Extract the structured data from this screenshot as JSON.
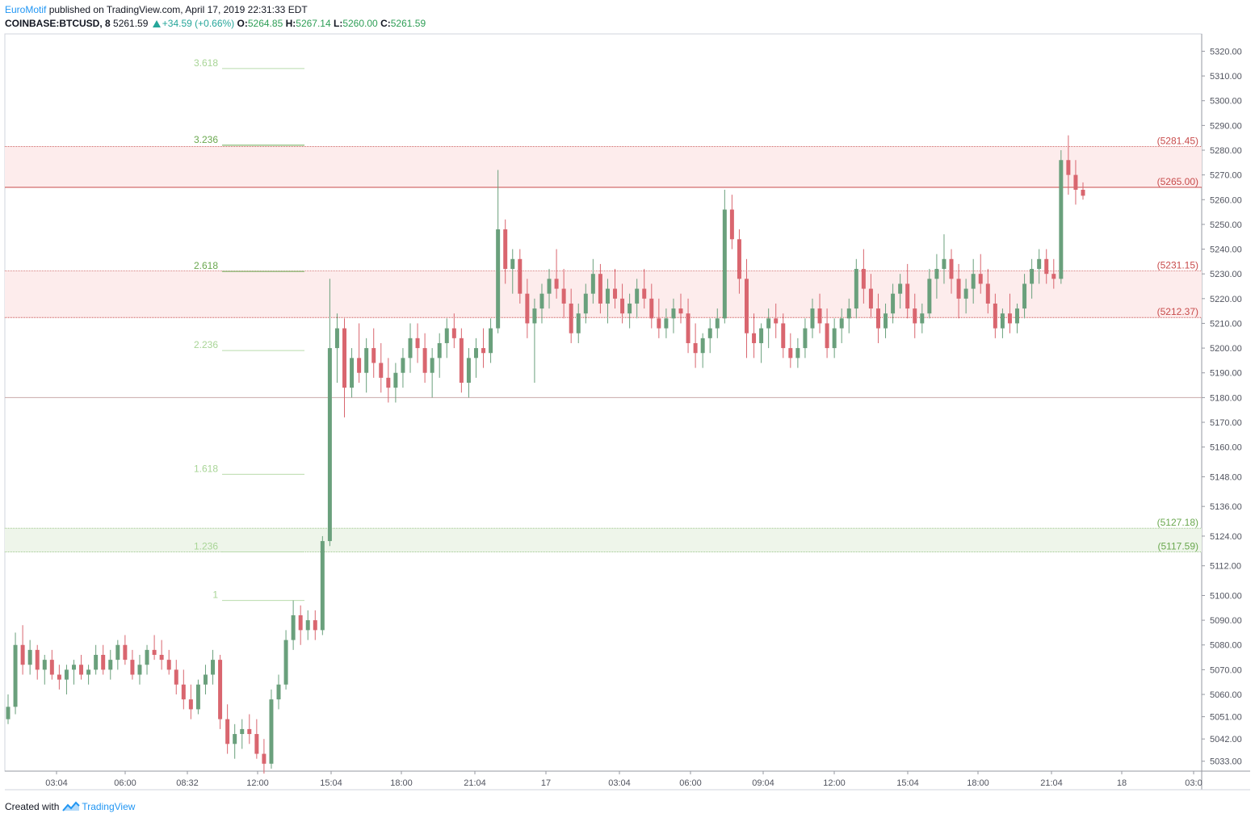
{
  "header": {
    "author": "EuroMotif",
    "published_text": "published on TradingView.com, April 17, 2019 22:31:33 EDT",
    "symbol": "COINBASE:BTCUSD, 8",
    "last": "5261.59",
    "change": "+34.59 (+0.66%)",
    "o_label": "O:",
    "o_value": "5264.85",
    "h_label": "H:",
    "h_value": "5267.14",
    "l_label": "L:",
    "l_value": "5260.00",
    "c_label": "C:",
    "c_value": "5261.59"
  },
  "footer": {
    "created_with": "Created with",
    "brand": "TradingView",
    "logo_icon": "tradingview-logo-icon"
  },
  "colors": {
    "up_candle": "#6aa07c",
    "down_candle": "#d9666f",
    "resistance_zone": "#fdecec",
    "resistance_line": "#c84b4b",
    "support_zone": "#eef5ea",
    "support_line": "#8fbf7a",
    "fib_text": "#8fc47a",
    "axis_text": "#50535e",
    "grid_line": "#9598a1"
  },
  "chart_data": {
    "type": "candlestick",
    "y_axis": {
      "ticks": [
        "5033.00",
        "5042.00",
        "5051.00",
        "5060.00",
        "5070.00",
        "5080.00",
        "5090.00",
        "5100.00",
        "5112.00",
        "5124.00",
        "5136.00",
        "5148.00",
        "5160.00",
        "5170.00",
        "5180.00",
        "5190.00",
        "5200.00",
        "5210.00",
        "5220.00",
        "5230.00",
        "5240.00",
        "5250.00",
        "5260.00",
        "5270.00",
        "5280.00",
        "5290.00",
        "5300.00",
        "5310.00",
        "5320.00"
      ]
    },
    "x_axis": {
      "ticks": [
        "03:04",
        "06:00",
        "08:32",
        "12:00",
        "15:04",
        "18:00",
        "21:04",
        "17",
        "03:04",
        "06:00",
        "09:04",
        "12:00",
        "15:04",
        "18:00",
        "21:04",
        "18",
        "03:0"
      ]
    },
    "fib_levels": [
      {
        "label": "3.618",
        "price": 5313
      },
      {
        "label": "3.236",
        "price": 5282
      },
      {
        "label": "2.618",
        "price": 5231
      },
      {
        "label": "2.236",
        "price": 5199
      },
      {
        "label": "1.618",
        "price": 5149
      },
      {
        "label": "1.236",
        "price": 5117.6
      },
      {
        "label": "1",
        "price": 5098
      }
    ],
    "zones": [
      {
        "type": "resistance",
        "top_label": "(5281.45)",
        "top": 5281.45,
        "bottom_label": "(5265.00)",
        "bottom": 5265.0
      },
      {
        "type": "resistance",
        "top_label": "(5231.15)",
        "top": 5231.15,
        "bottom_label": "(5212.37)",
        "bottom": 5212.37
      },
      {
        "type": "support",
        "top_label": "(5127.18)",
        "top": 5127.18,
        "bottom_label": "(5117.59)",
        "bottom": 5117.59
      }
    ],
    "horizontal_line": 5180,
    "candles": [
      [
        5050,
        5060,
        5048,
        5055
      ],
      [
        5055,
        5085,
        5052,
        5080
      ],
      [
        5080,
        5088,
        5068,
        5072
      ],
      [
        5072,
        5082,
        5068,
        5078
      ],
      [
        5078,
        5080,
        5066,
        5070
      ],
      [
        5070,
        5076,
        5064,
        5074
      ],
      [
        5074,
        5078,
        5066,
        5068
      ],
      [
        5068,
        5072,
        5062,
        5066
      ],
      [
        5066,
        5072,
        5060,
        5070
      ],
      [
        5070,
        5074,
        5064,
        5072
      ],
      [
        5072,
        5076,
        5066,
        5068
      ],
      [
        5068,
        5072,
        5064,
        5070
      ],
      [
        5070,
        5080,
        5068,
        5076
      ],
      [
        5076,
        5080,
        5068,
        5070
      ],
      [
        5070,
        5078,
        5066,
        5074
      ],
      [
        5074,
        5082,
        5070,
        5080
      ],
      [
        5080,
        5084,
        5072,
        5074
      ],
      [
        5074,
        5078,
        5066,
        5068
      ],
      [
        5068,
        5076,
        5064,
        5072
      ],
      [
        5072,
        5080,
        5068,
        5078
      ],
      [
        5078,
        5084,
        5074,
        5076
      ],
      [
        5076,
        5082,
        5070,
        5074
      ],
      [
        5074,
        5078,
        5068,
        5070
      ],
      [
        5070,
        5074,
        5060,
        5064
      ],
      [
        5064,
        5070,
        5054,
        5058
      ],
      [
        5058,
        5064,
        5050,
        5054
      ],
      [
        5054,
        5066,
        5052,
        5064
      ],
      [
        5064,
        5072,
        5060,
        5068
      ],
      [
        5068,
        5078,
        5064,
        5074
      ],
      [
        5074,
        5076,
        5046,
        5050
      ],
      [
        5050,
        5056,
        5036,
        5040
      ],
      [
        5040,
        5048,
        5034,
        5044
      ],
      [
        5044,
        5050,
        5038,
        5046
      ],
      [
        5046,
        5052,
        5040,
        5044
      ],
      [
        5044,
        5050,
        5034,
        5036
      ],
      [
        5036,
        5042,
        5028,
        5032
      ],
      [
        5032,
        5062,
        5030,
        5058
      ],
      [
        5058,
        5068,
        5054,
        5064
      ],
      [
        5064,
        5086,
        5062,
        5082
      ],
      [
        5082,
        5098,
        5078,
        5092
      ],
      [
        5092,
        5096,
        5080,
        5086
      ],
      [
        5086,
        5094,
        5082,
        5090
      ],
      [
        5090,
        5094,
        5082,
        5086
      ],
      [
        5086,
        5124,
        5084,
        5122
      ],
      [
        5122,
        5228,
        5120,
        5200
      ],
      [
        5200,
        5214,
        5186,
        5208
      ],
      [
        5208,
        5212,
        5172,
        5184
      ],
      [
        5184,
        5200,
        5180,
        5196
      ],
      [
        5196,
        5210,
        5186,
        5190
      ],
      [
        5190,
        5204,
        5182,
        5200
      ],
      [
        5200,
        5208,
        5188,
        5194
      ],
      [
        5194,
        5202,
        5182,
        5188
      ],
      [
        5188,
        5196,
        5178,
        5184
      ],
      [
        5184,
        5194,
        5178,
        5190
      ],
      [
        5190,
        5200,
        5184,
        5196
      ],
      [
        5196,
        5210,
        5190,
        5204
      ],
      [
        5204,
        5210,
        5194,
        5200
      ],
      [
        5200,
        5206,
        5186,
        5190
      ],
      [
        5190,
        5200,
        5180,
        5196
      ],
      [
        5196,
        5206,
        5188,
        5202
      ],
      [
        5202,
        5212,
        5196,
        5208
      ],
      [
        5208,
        5214,
        5200,
        5204
      ],
      [
        5204,
        5208,
        5182,
        5186
      ],
      [
        5186,
        5200,
        5180,
        5196
      ],
      [
        5196,
        5204,
        5188,
        5200
      ],
      [
        5200,
        5208,
        5192,
        5198
      ],
      [
        5198,
        5212,
        5194,
        5208
      ],
      [
        5208,
        5272,
        5206,
        5248
      ],
      [
        5248,
        5252,
        5226,
        5232
      ],
      [
        5232,
        5240,
        5222,
        5236
      ],
      [
        5236,
        5240,
        5218,
        5222
      ],
      [
        5222,
        5228,
        5204,
        5210
      ],
      [
        5210,
        5220,
        5186,
        5216
      ],
      [
        5216,
        5226,
        5210,
        5222
      ],
      [
        5222,
        5232,
        5216,
        5228
      ],
      [
        5228,
        5240,
        5220,
        5224
      ],
      [
        5224,
        5232,
        5212,
        5218
      ],
      [
        5218,
        5224,
        5202,
        5206
      ],
      [
        5206,
        5218,
        5202,
        5214
      ],
      [
        5214,
        5226,
        5210,
        5222
      ],
      [
        5222,
        5236,
        5218,
        5230
      ],
      [
        5230,
        5234,
        5214,
        5218
      ],
      [
        5218,
        5228,
        5210,
        5224
      ],
      [
        5224,
        5232,
        5216,
        5220
      ],
      [
        5220,
        5226,
        5210,
        5214
      ],
      [
        5214,
        5222,
        5208,
        5218
      ],
      [
        5218,
        5228,
        5212,
        5224
      ],
      [
        5224,
        5232,
        5216,
        5220
      ],
      [
        5220,
        5226,
        5208,
        5212
      ],
      [
        5212,
        5220,
        5204,
        5208
      ],
      [
        5208,
        5216,
        5204,
        5212
      ],
      [
        5212,
        5220,
        5206,
        5216
      ],
      [
        5216,
        5222,
        5210,
        5214
      ],
      [
        5214,
        5220,
        5198,
        5202
      ],
      [
        5202,
        5210,
        5192,
        5198
      ],
      [
        5198,
        5206,
        5192,
        5204
      ],
      [
        5204,
        5212,
        5198,
        5208
      ],
      [
        5208,
        5216,
        5204,
        5212
      ],
      [
        5212,
        5264,
        5210,
        5256
      ],
      [
        5256,
        5262,
        5240,
        5244
      ],
      [
        5244,
        5248,
        5222,
        5228
      ],
      [
        5228,
        5236,
        5196,
        5206
      ],
      [
        5206,
        5214,
        5196,
        5202
      ],
      [
        5202,
        5210,
        5194,
        5208
      ],
      [
        5208,
        5216,
        5200,
        5212
      ],
      [
        5212,
        5218,
        5204,
        5210
      ],
      [
        5210,
        5214,
        5196,
        5200
      ],
      [
        5200,
        5206,
        5192,
        5196
      ],
      [
        5196,
        5204,
        5192,
        5200
      ],
      [
        5200,
        5212,
        5196,
        5208
      ],
      [
        5208,
        5220,
        5204,
        5216
      ],
      [
        5216,
        5222,
        5206,
        5210
      ],
      [
        5210,
        5216,
        5196,
        5200
      ],
      [
        5200,
        5212,
        5196,
        5208
      ],
      [
        5208,
        5216,
        5202,
        5212
      ],
      [
        5212,
        5220,
        5206,
        5216
      ],
      [
        5216,
        5236,
        5212,
        5232
      ],
      [
        5232,
        5240,
        5218,
        5224
      ],
      [
        5224,
        5230,
        5212,
        5216
      ],
      [
        5216,
        5222,
        5202,
        5208
      ],
      [
        5208,
        5218,
        5204,
        5214
      ],
      [
        5214,
        5226,
        5210,
        5222
      ],
      [
        5222,
        5230,
        5216,
        5226
      ],
      [
        5226,
        5234,
        5212,
        5216
      ],
      [
        5216,
        5222,
        5204,
        5210
      ],
      [
        5210,
        5218,
        5206,
        5214
      ],
      [
        5214,
        5232,
        5212,
        5228
      ],
      [
        5228,
        5238,
        5220,
        5232
      ],
      [
        5232,
        5246,
        5226,
        5236
      ],
      [
        5236,
        5240,
        5222,
        5228
      ],
      [
        5228,
        5234,
        5212,
        5220
      ],
      [
        5220,
        5228,
        5214,
        5224
      ],
      [
        5224,
        5236,
        5218,
        5230
      ],
      [
        5230,
        5238,
        5222,
        5226
      ],
      [
        5226,
        5232,
        5214,
        5218
      ],
      [
        5218,
        5222,
        5204,
        5208
      ],
      [
        5208,
        5216,
        5204,
        5214
      ],
      [
        5214,
        5222,
        5206,
        5210
      ],
      [
        5210,
        5218,
        5206,
        5216
      ],
      [
        5216,
        5230,
        5212,
        5226
      ],
      [
        5226,
        5236,
        5220,
        5232
      ],
      [
        5232,
        5240,
        5226,
        5236
      ],
      [
        5236,
        5240,
        5226,
        5230
      ],
      [
        5230,
        5236,
        5224,
        5228
      ],
      [
        5228,
        5280,
        5226,
        5276
      ],
      [
        5276,
        5286,
        5262,
        5270
      ],
      [
        5270,
        5276,
        5258,
        5264
      ],
      [
        5264,
        5267,
        5260,
        5261.59
      ]
    ]
  }
}
